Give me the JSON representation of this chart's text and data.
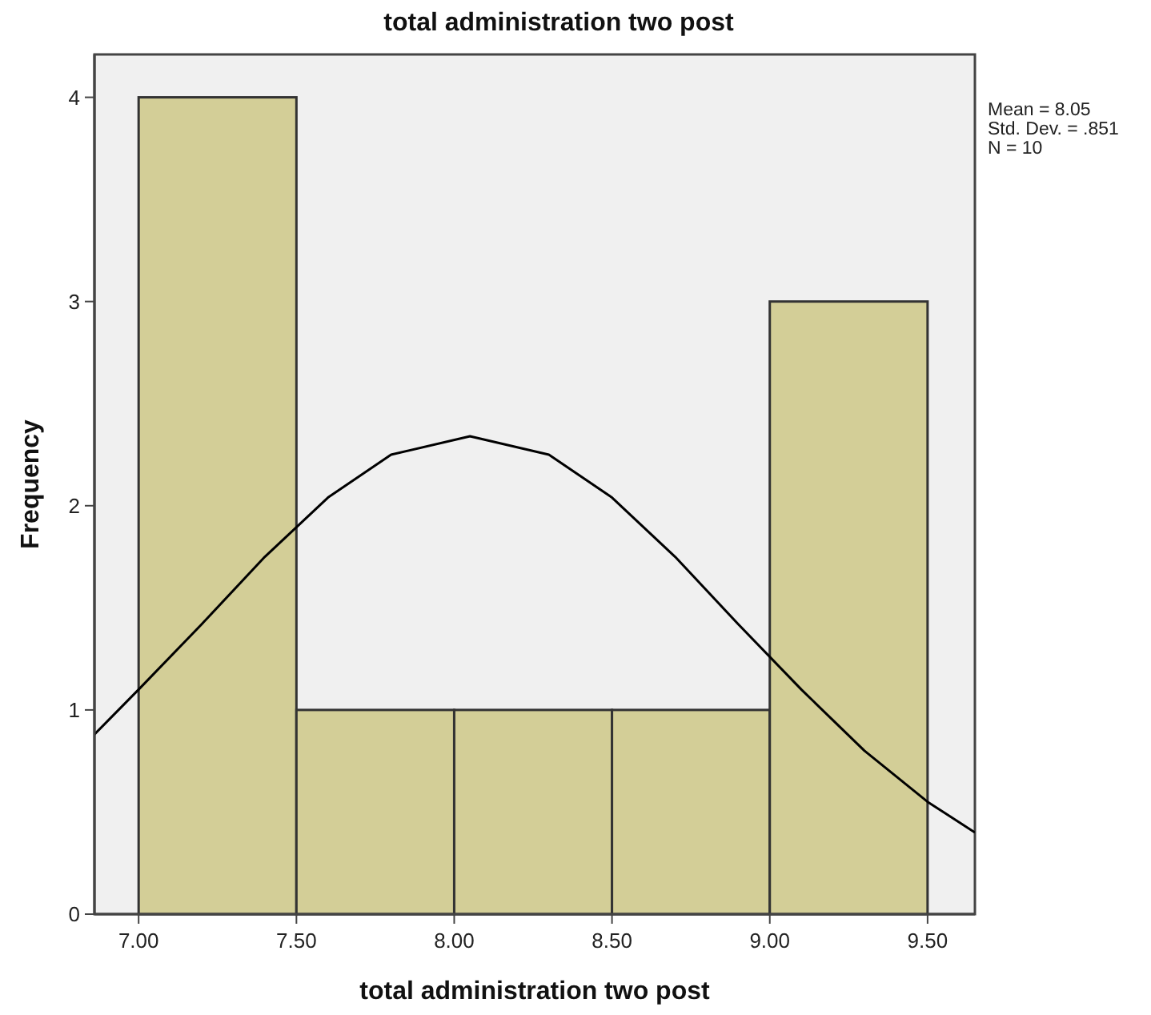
{
  "chart_data": {
    "type": "histogram",
    "title": "total administration two post",
    "xlabel": "total administration two post",
    "ylabel": "Frequency",
    "bins": [
      7,
      7.5,
      8,
      8.5,
      9,
      9.5
    ],
    "values": [
      4,
      1,
      1,
      1,
      3
    ],
    "color": "#d3ce97",
    "series": [
      {
        "type": "line",
        "color": "#000000",
        "x": [
          6.86,
          7.0,
          7.2,
          7.4,
          7.6,
          7.8,
          8.05,
          8.3,
          8.5,
          8.7,
          8.9,
          9.1,
          9.3,
          9.5,
          9.65
        ],
        "values": [
          0.88,
          1.1,
          1.42,
          1.75,
          2.04,
          2.25,
          2.34,
          2.25,
          2.04,
          1.75,
          1.42,
          1.1,
          0.8,
          0.55,
          0.4
        ]
      }
    ],
    "xlim": [
      6.86,
      9.65
    ],
    "ylim": [
      0,
      4.21
    ],
    "xticks": [
      {
        "value": 7,
        "label": "7.00"
      },
      {
        "value": 7.5,
        "label": "7.50"
      },
      {
        "value": 8,
        "label": "8.00"
      },
      {
        "value": 8.5,
        "label": "8.50"
      },
      {
        "value": 9,
        "label": "9.00"
      },
      {
        "value": 9.5,
        "label": "9.50"
      }
    ],
    "yticks": [
      0,
      1,
      2,
      3,
      4
    ],
    "annotations": [
      "Mean = 8.05",
      "Std. Dev. = .851",
      "N = 10"
    ]
  }
}
